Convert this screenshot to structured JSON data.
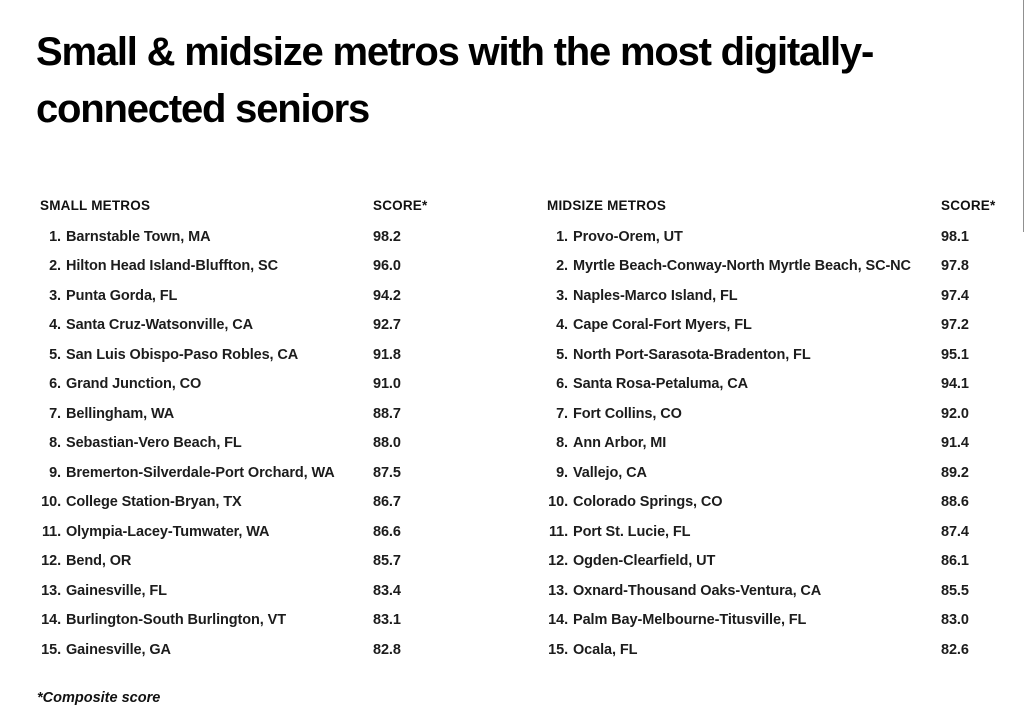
{
  "title_lines": {
    "line1": "Small & midsize metros with the most digitally-",
    "line2": "connected seniors"
  },
  "footnote": "*Composite score",
  "colors": {
    "background": "#ffffff",
    "text": "#1c1c1c",
    "title": "#000000"
  },
  "tables": [
    {
      "header": "SMALL METROS",
      "score_header": "SCORE*",
      "rows": [
        {
          "rank": "1.",
          "name": "Barnstable Town, MA",
          "score": "98.2"
        },
        {
          "rank": "2.",
          "name": "Hilton Head Island-Bluffton, SC",
          "score": "96.0"
        },
        {
          "rank": "3.",
          "name": "Punta Gorda, FL",
          "score": "94.2"
        },
        {
          "rank": "4.",
          "name": "Santa Cruz-Watsonville, CA",
          "score": "92.7"
        },
        {
          "rank": "5.",
          "name": "San Luis Obispo-Paso Robles, CA",
          "score": "91.8"
        },
        {
          "rank": "6.",
          "name": "Grand Junction, CO",
          "score": "91.0"
        },
        {
          "rank": "7.",
          "name": "Bellingham, WA",
          "score": "88.7"
        },
        {
          "rank": "8.",
          "name": "Sebastian-Vero Beach, FL",
          "score": "88.0"
        },
        {
          "rank": "9.",
          "name": "Bremerton-Silverdale-Port Orchard, WA",
          "score": "87.5"
        },
        {
          "rank": "10.",
          "name": "College Station-Bryan, TX",
          "score": "86.7"
        },
        {
          "rank": "11.",
          "name": "Olympia-Lacey-Tumwater, WA",
          "score": "86.6"
        },
        {
          "rank": "12.",
          "name": "Bend, OR",
          "score": "85.7"
        },
        {
          "rank": "13.",
          "name": "Gainesville, FL",
          "score": "83.4"
        },
        {
          "rank": "14.",
          "name": "Burlington-South Burlington, VT",
          "score": "83.1"
        },
        {
          "rank": "15.",
          "name": "Gainesville, GA",
          "score": "82.8"
        }
      ]
    },
    {
      "header": "MIDSIZE METROS",
      "score_header": "SCORE*",
      "rows": [
        {
          "rank": "1.",
          "name": "Provo-Orem, UT",
          "score": "98.1"
        },
        {
          "rank": "2.",
          "name": "Myrtle Beach-Conway-North Myrtle Beach, SC-NC",
          "score": "97.8"
        },
        {
          "rank": "3.",
          "name": "Naples-Marco Island, FL",
          "score": "97.4"
        },
        {
          "rank": "4.",
          "name": "Cape Coral-Fort Myers, FL",
          "score": "97.2"
        },
        {
          "rank": "5.",
          "name": "North Port-Sarasota-Bradenton, FL",
          "score": "95.1"
        },
        {
          "rank": "6.",
          "name": "Santa Rosa-Petaluma, CA",
          "score": "94.1"
        },
        {
          "rank": "7.",
          "name": "Fort Collins, CO",
          "score": "92.0"
        },
        {
          "rank": "8.",
          "name": "Ann Arbor, MI",
          "score": "91.4"
        },
        {
          "rank": "9.",
          "name": "Vallejo, CA",
          "score": "89.2"
        },
        {
          "rank": "10.",
          "name": "Colorado Springs, CO",
          "score": "88.6"
        },
        {
          "rank": "11.",
          "name": "Port St. Lucie, FL",
          "score": "87.4"
        },
        {
          "rank": "12.",
          "name": "Ogden-Clearfield, UT",
          "score": "86.1"
        },
        {
          "rank": "13.",
          "name": "Oxnard-Thousand Oaks-Ventura, CA",
          "score": "85.5"
        },
        {
          "rank": "14.",
          "name": "Palm Bay-Melbourne-Titusville, FL",
          "score": "83.0"
        },
        {
          "rank": "15.",
          "name": "Ocala, FL",
          "score": "82.6"
        }
      ]
    }
  ]
}
